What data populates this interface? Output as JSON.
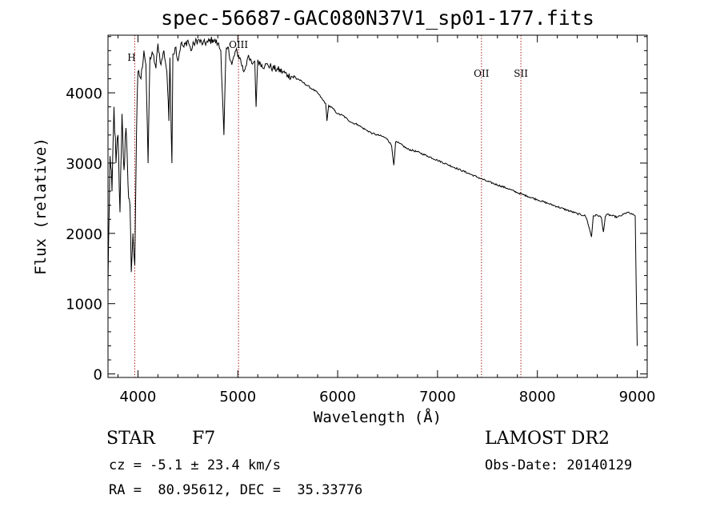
{
  "chart_data": {
    "type": "line",
    "title": "spec-56687-GAC080N37V1_sp01-177.fits",
    "xlabel": "Wavelength (Å)",
    "ylabel": "Flux (relative)",
    "xlim": [
      3700,
      9100
    ],
    "ylim": [
      -50,
      4820
    ],
    "xticks": [
      4000,
      5000,
      6000,
      7000,
      8000,
      9000
    ],
    "yticks": [
      0,
      1000,
      2000,
      3000,
      4000
    ],
    "grid": false,
    "series": [
      {
        "x": [
          3700,
          3720,
          3740,
          3760,
          3780,
          3800,
          3820,
          3840,
          3860,
          3880,
          3900,
          3920,
          3933,
          3950,
          3968,
          3985,
          4000,
          4030,
          4060,
          4080,
          4101,
          4120,
          4150,
          4180,
          4200,
          4230,
          4260,
          4290,
          4310,
          4320,
          4340,
          4350,
          4380,
          4400,
          4430,
          4460,
          4500,
          4530,
          4560,
          4600,
          4650,
          4700,
          4750,
          4800,
          4830,
          4861,
          4880,
          4900,
          4940,
          4980,
          5020,
          5060,
          5100,
          5140,
          5170,
          5183,
          5200,
          5240,
          5270,
          5300,
          5350,
          5400,
          5450,
          5500,
          5550,
          5600,
          5650,
          5700,
          5750,
          5800,
          5850,
          5880,
          5893,
          5910,
          5950,
          6000,
          6050,
          6100,
          6150,
          6200,
          6250,
          6300,
          6350,
          6400,
          6450,
          6500,
          6540,
          6563,
          6580,
          6620,
          6700,
          6800,
          6900,
          7000,
          7100,
          7200,
          7300,
          7400,
          7500,
          7600,
          7700,
          7800,
          7900,
          8000,
          8100,
          8200,
          8300,
          8400,
          8480,
          8500,
          8542,
          8560,
          8600,
          8640,
          8662,
          8680,
          8700,
          8750,
          8800,
          8850,
          8900,
          8950,
          8980,
          8990,
          9000
        ],
        "y": [
          1300,
          3100,
          2600,
          3800,
          3000,
          3400,
          2300,
          3700,
          2900,
          3500,
          2700,
          2400,
          1450,
          2000,
          1550,
          3400,
          4300,
          4200,
          4600,
          4400,
          3000,
          4500,
          4550,
          4350,
          4700,
          4400,
          4600,
          4300,
          3600,
          4500,
          3000,
          4550,
          4650,
          4450,
          4700,
          4650,
          4750,
          4600,
          4700,
          4750,
          4700,
          4720,
          4760,
          4700,
          4600,
          3400,
          4550,
          4650,
          4400,
          4600,
          4500,
          4300,
          4500,
          4420,
          4450,
          3800,
          4470,
          4400,
          4380,
          4400,
          4350,
          4330,
          4300,
          4250,
          4230,
          4200,
          4150,
          4100,
          4050,
          4000,
          3900,
          3850,
          3600,
          3820,
          3780,
          3700,
          3680,
          3620,
          3570,
          3550,
          3500,
          3460,
          3420,
          3400,
          3380,
          3340,
          3250,
          2970,
          3300,
          3280,
          3200,
          3160,
          3100,
          3040,
          2980,
          2920,
          2860,
          2800,
          2740,
          2690,
          2640,
          2580,
          2530,
          2480,
          2430,
          2380,
          2330,
          2280,
          2250,
          2180,
          1950,
          2250,
          2260,
          2230,
          2020,
          2240,
          2270,
          2250,
          2230,
          2260,
          2300,
          2270,
          2250,
          1200,
          400
        ]
      }
    ],
    "line_markers": [
      {
        "label": "H",
        "x": 3968
      },
      {
        "label": "OIII",
        "x": 5007
      },
      {
        "label": "OII",
        "x": 7440
      },
      {
        "label": "SII",
        "x": 7835
      }
    ]
  },
  "info": {
    "object_class": "STAR",
    "subclass": "F7",
    "survey": "LAMOST DR2",
    "redshift_line": "cz = -5.1 ± 23.4 km/s",
    "obs_date_line": "Obs-Date: 20140129",
    "coords_line": "RA =  80.95612, DEC =  35.33776"
  },
  "colors": {
    "spectrum": "#000000",
    "marker_line": "#b22222",
    "axes": "#000000",
    "background": "#ffffff"
  }
}
